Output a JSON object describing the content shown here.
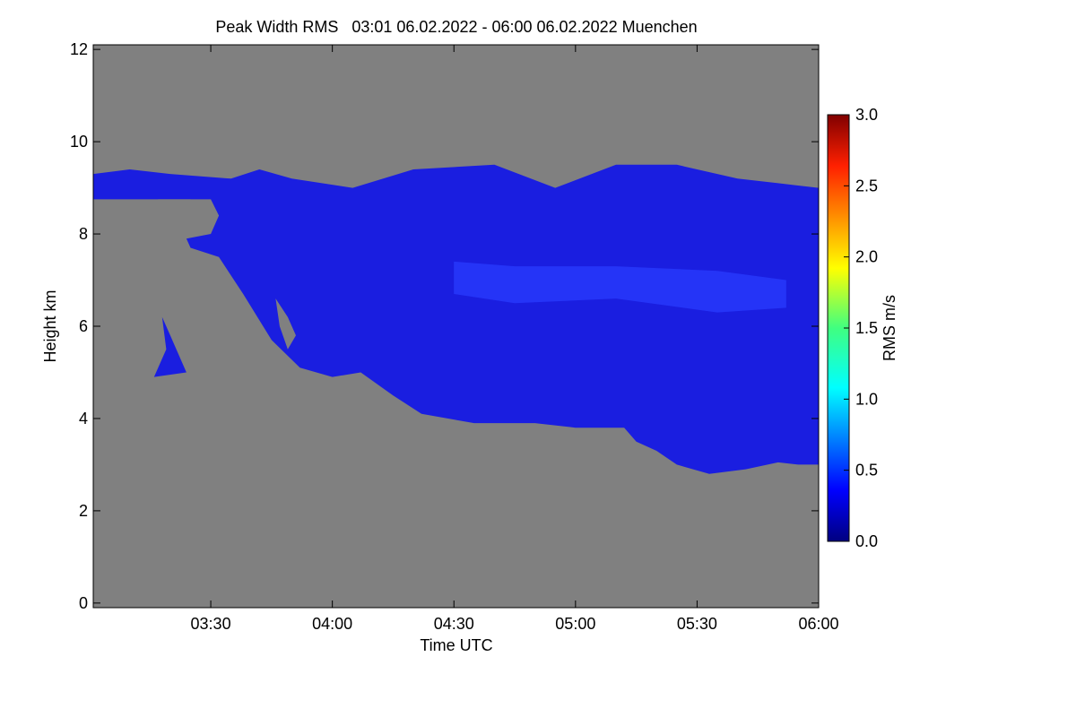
{
  "chart_data": {
    "type": "heatmap",
    "title": "Peak Width RMS   03:01 06.02.2022 - 06:00 06.02.2022 Muenchen",
    "xlabel": "Time UTC",
    "ylabel": "Height km",
    "x_ticks": [
      "03:30",
      "04:00",
      "04:30",
      "05:00",
      "05:30",
      "06:00"
    ],
    "x_tick_values_min": [
      210,
      240,
      270,
      300,
      330,
      360
    ],
    "xlim_min": [
      181,
      360
    ],
    "y_ticks": [
      "0",
      "2",
      "4",
      "6",
      "8",
      "10",
      "12"
    ],
    "y_tick_values": [
      0,
      2,
      4,
      6,
      8,
      10,
      12
    ],
    "ylim": [
      -0.1,
      12.1
    ],
    "colorbar": {
      "label": "RMS m/s",
      "ticks": [
        "0.0",
        "0.5",
        "1.0",
        "1.5",
        "2.0",
        "2.5",
        "3.0"
      ],
      "tick_values": [
        0.0,
        0.5,
        1.0,
        1.5,
        2.0,
        2.5,
        3.0
      ],
      "range": [
        0.0,
        3.0
      ]
    },
    "background_color": "#808080",
    "cloud_color": "#1a1ee0",
    "cloud_region_km": [
      {
        "x": 181,
        "y": 8.75
      },
      {
        "x": 181,
        "y": 9.3
      },
      {
        "x": 190,
        "y": 9.4
      },
      {
        "x": 200,
        "y": 9.3
      },
      {
        "x": 215,
        "y": 9.2
      },
      {
        "x": 222,
        "y": 9.4
      },
      {
        "x": 230,
        "y": 9.2
      },
      {
        "x": 245,
        "y": 9.0
      },
      {
        "x": 260,
        "y": 9.4
      },
      {
        "x": 280,
        "y": 9.5
      },
      {
        "x": 295,
        "y": 9.0
      },
      {
        "x": 310,
        "y": 9.5
      },
      {
        "x": 325,
        "y": 9.5
      },
      {
        "x": 340,
        "y": 9.2
      },
      {
        "x": 350,
        "y": 9.1
      },
      {
        "x": 360,
        "y": 9.0
      },
      {
        "x": 360,
        "y": 3.0
      },
      {
        "x": 355,
        "y": 3.0
      },
      {
        "x": 350,
        "y": 3.05
      },
      {
        "x": 342,
        "y": 2.9
      },
      {
        "x": 333,
        "y": 2.8
      },
      {
        "x": 325,
        "y": 3.0
      },
      {
        "x": 320,
        "y": 3.3
      },
      {
        "x": 315,
        "y": 3.5
      },
      {
        "x": 312,
        "y": 3.8
      },
      {
        "x": 300,
        "y": 3.8
      },
      {
        "x": 290,
        "y": 3.9
      },
      {
        "x": 275,
        "y": 3.9
      },
      {
        "x": 262,
        "y": 4.1
      },
      {
        "x": 255,
        "y": 4.5
      },
      {
        "x": 247,
        "y": 5.0
      },
      {
        "x": 240,
        "y": 4.9
      },
      {
        "x": 232,
        "y": 5.1
      },
      {
        "x": 225,
        "y": 5.7
      },
      {
        "x": 218,
        "y": 6.7
      },
      {
        "x": 212,
        "y": 7.5
      },
      {
        "x": 205,
        "y": 7.7
      },
      {
        "x": 204,
        "y": 7.9
      },
      {
        "x": 210,
        "y": 8.0
      },
      {
        "x": 212,
        "y": 8.4
      },
      {
        "x": 205,
        "y": 8.75
      }
    ],
    "gaps_km": [
      [
        {
          "x": 226,
          "y": 6.6
        },
        {
          "x": 229,
          "y": 6.2
        },
        {
          "x": 231,
          "y": 5.8
        },
        {
          "x": 229,
          "y": 5.5
        },
        {
          "x": 227,
          "y": 6.0
        }
      ],
      [
        {
          "x": 197,
          "y": 8.75
        },
        {
          "x": 210,
          "y": 8.75
        },
        {
          "x": 212,
          "y": 8.4
        },
        {
          "x": 209,
          "y": 8.1
        },
        {
          "x": 200,
          "y": 8.2
        },
        {
          "x": 196,
          "y": 8.5
        }
      ]
    ],
    "isolated_cloud_km": [
      {
        "x": 198,
        "y": 6.2
      },
      {
        "x": 200,
        "y": 5.8
      },
      {
        "x": 204,
        "y": 5.0
      },
      {
        "x": 196,
        "y": 4.9
      },
      {
        "x": 199,
        "y": 5.5
      }
    ],
    "enhanced_band_km": [
      {
        "x": 270,
        "y": 7.4
      },
      {
        "x": 285,
        "y": 7.3
      },
      {
        "x": 310,
        "y": 7.3
      },
      {
        "x": 335,
        "y": 7.2
      },
      {
        "x": 352,
        "y": 7.0
      },
      {
        "x": 352,
        "y": 6.4
      },
      {
        "x": 335,
        "y": 6.3
      },
      {
        "x": 310,
        "y": 6.6
      },
      {
        "x": 285,
        "y": 6.5
      },
      {
        "x": 270,
        "y": 6.7
      }
    ]
  }
}
